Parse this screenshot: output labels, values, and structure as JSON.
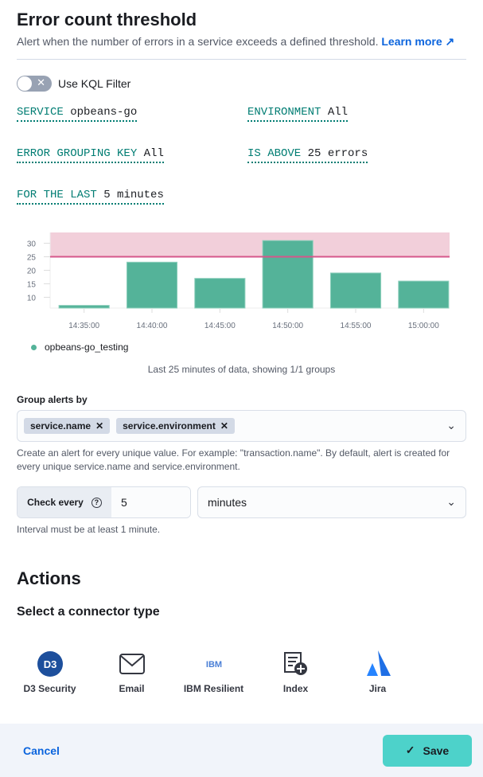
{
  "header": {
    "title": "Error count threshold",
    "description": "Alert when the number of errors in a service exceeds a defined threshold.",
    "learn_more": "Learn more"
  },
  "kql": {
    "label": "Use KQL Filter",
    "enabled": false
  },
  "expressions": [
    {
      "key": "SERVICE",
      "value": "opbeans-go"
    },
    {
      "key": "ENVIRONMENT",
      "value": "All"
    },
    {
      "key": "ERROR GROUPING KEY",
      "value": "All"
    },
    {
      "key": "IS ABOVE",
      "value": "25 errors"
    },
    {
      "key": "FOR THE LAST",
      "value": "5 minutes"
    }
  ],
  "chart_data": {
    "type": "bar",
    "categories": [
      "14:35:00",
      "14:40:00",
      "14:45:00",
      "14:50:00",
      "14:55:00",
      "15:00:00"
    ],
    "series": [
      {
        "name": "opbeans-go_testing",
        "values": [
          7,
          23,
          17,
          31,
          19,
          16
        ],
        "color": "#54b399"
      }
    ],
    "threshold": 25,
    "threshold_color": "#d6578b",
    "yticks": [
      10,
      15,
      20,
      25,
      30
    ],
    "ylim": [
      6,
      34
    ],
    "legend": "bottom-left",
    "caption": "Last 25 minutes of data, showing 1/1 groups"
  },
  "group_by": {
    "label": "Group alerts by",
    "chips": [
      "service.name",
      "service.environment"
    ],
    "help": "Create an alert for every unique value. For example: \"transaction.name\". By default, alert is created for every unique service.name and service.environment."
  },
  "check_every": {
    "label": "Check every",
    "value": "5",
    "unit": "minutes",
    "help": "Interval must be at least 1 minute."
  },
  "actions": {
    "title": "Actions",
    "subtitle": "Select a connector type",
    "connectors": [
      "D3 Security",
      "Email",
      "IBM Resilient",
      "Index",
      "Jira"
    ]
  },
  "footer": {
    "cancel": "Cancel",
    "save": "Save"
  }
}
